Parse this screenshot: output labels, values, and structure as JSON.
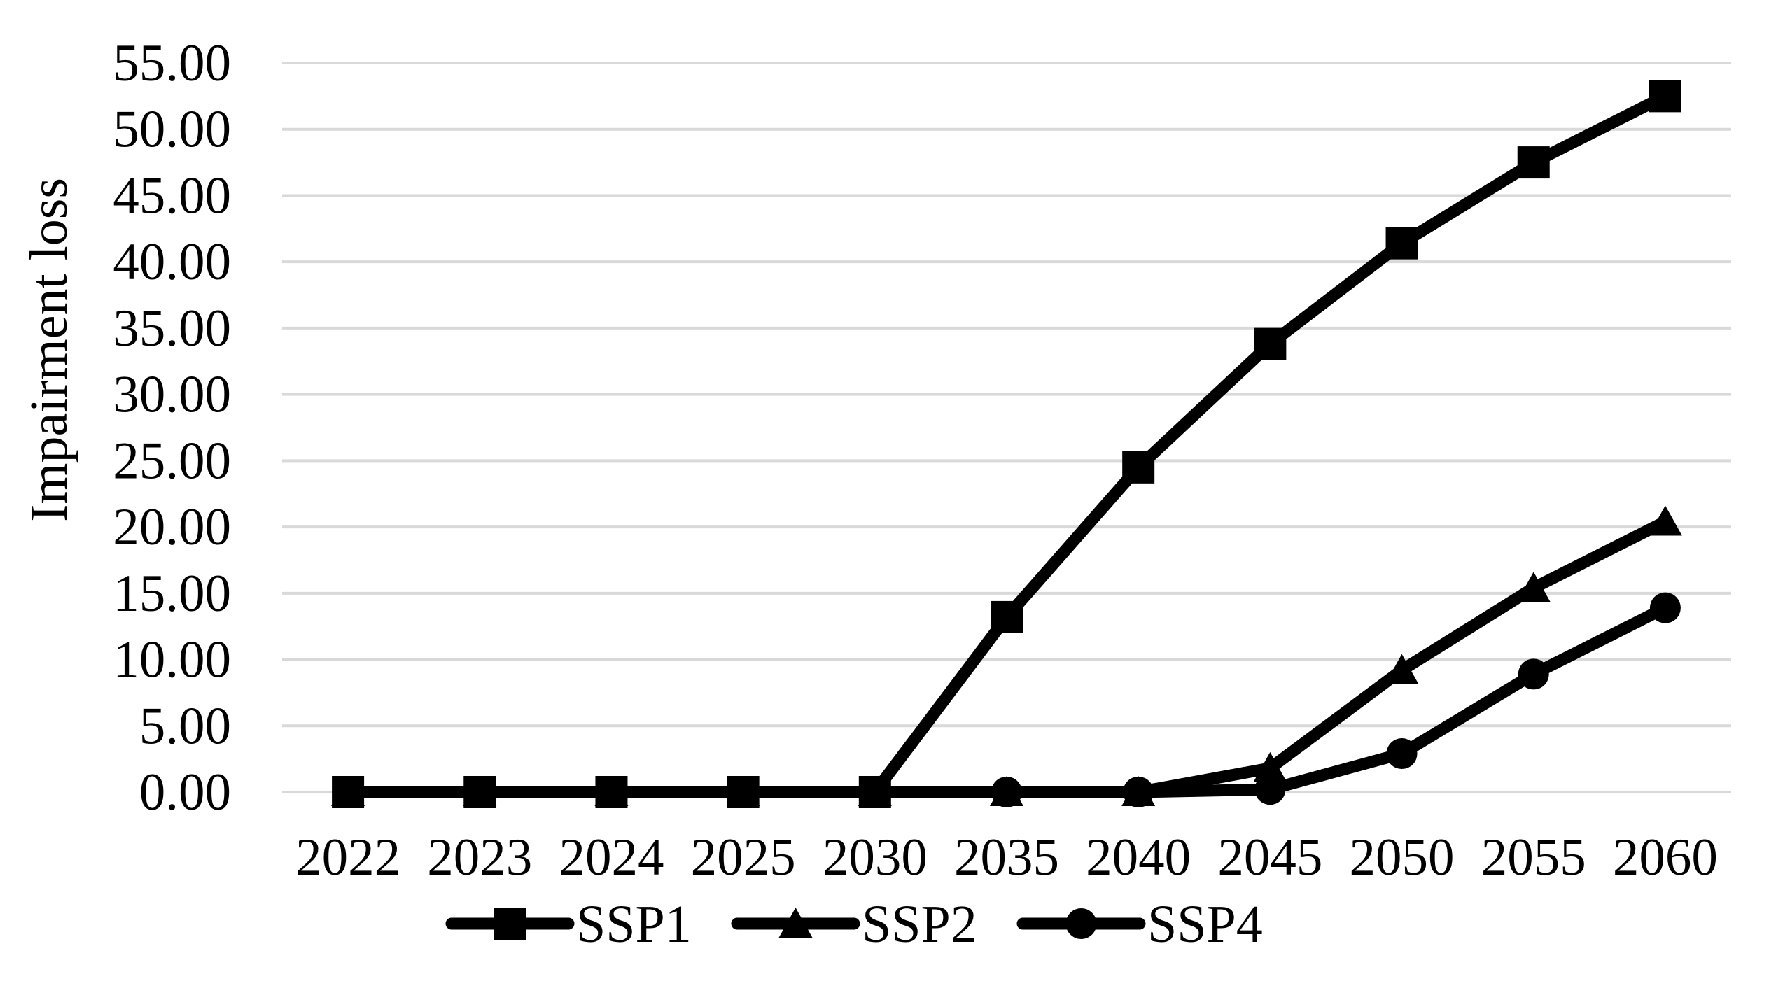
{
  "chart_data": {
    "type": "line",
    "title": "",
    "xlabel": "",
    "ylabel": "Impairment loss",
    "categories": [
      "2022",
      "2023",
      "2024",
      "2025",
      "2030",
      "2035",
      "2040",
      "2045",
      "2050",
      "2055",
      "2060"
    ],
    "series": [
      {
        "name": "SSP1",
        "marker": "square",
        "color": "#000000",
        "values": [
          0,
          0,
          0,
          0,
          0,
          13.2,
          24.5,
          33.8,
          41.4,
          47.5,
          52.5
        ]
      },
      {
        "name": "SSP2",
        "marker": "triangle",
        "color": "#000000",
        "values": [
          0,
          0,
          0,
          0,
          0,
          0,
          0,
          1.8,
          9.2,
          15.4,
          20.4
        ]
      },
      {
        "name": "SSP4",
        "marker": "circle",
        "color": "#000000",
        "values": [
          0,
          0,
          0,
          0,
          0,
          0,
          0,
          0.2,
          2.9,
          8.9,
          13.9
        ]
      }
    ],
    "ylim": [
      0,
      55
    ],
    "ytick_step": 5,
    "ytick_labels": [
      "0.00",
      "5.00",
      "10.00",
      "15.00",
      "20.00",
      "25.00",
      "30.00",
      "35.00",
      "40.00",
      "45.00",
      "50.00",
      "55.00"
    ],
    "grid": "horizontal",
    "gridline_color": "#d9d9d9",
    "line_color": "#000000",
    "axis_text_color": "#000000",
    "legend_position": "bottom",
    "legend_items": [
      "SSP1",
      "SSP2",
      "SSP4"
    ]
  }
}
